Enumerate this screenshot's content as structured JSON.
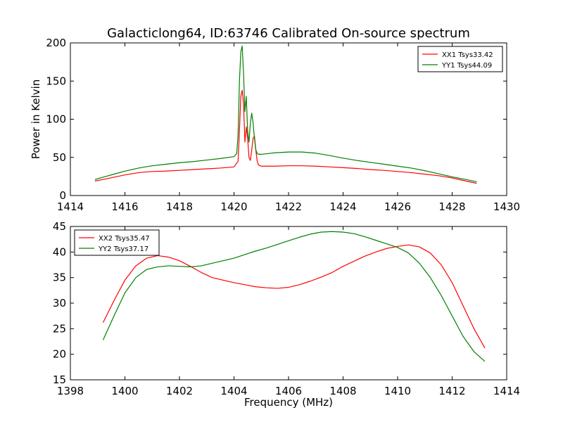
{
  "title": "Galacticlong64, ID:63746 Calibrated On-source spectrum",
  "chart_data": [
    {
      "type": "line",
      "ylabel": "Power in Kelvin",
      "xlabel": "",
      "xlim": [
        1414,
        1430
      ],
      "ylim": [
        0,
        200
      ],
      "xticks": [
        "1414",
        "1416",
        "1418",
        "1420",
        "1422",
        "1424",
        "1426",
        "1428",
        "1430"
      ],
      "yticks": [
        "0",
        "50",
        "100",
        "150",
        "200"
      ],
      "legend_position": "top-right",
      "series": [
        {
          "name": "XX1 Tsys33.42",
          "color": "#ff0000",
          "x": [
            1414.9,
            1415.2,
            1415.6,
            1416.0,
            1416.5,
            1417.0,
            1417.5,
            1418.0,
            1418.5,
            1419.0,
            1419.5,
            1420.0,
            1420.15,
            1420.2,
            1420.25,
            1420.3,
            1420.35,
            1420.4,
            1420.45,
            1420.5,
            1420.55,
            1420.6,
            1420.65,
            1420.7,
            1420.75,
            1420.8,
            1420.85,
            1420.9,
            1421.0,
            1421.5,
            1422.0,
            1422.5,
            1423.0,
            1423.5,
            1424.0,
            1424.5,
            1425.0,
            1425.5,
            1426.0,
            1426.5,
            1427.0,
            1427.5,
            1428.0,
            1428.5,
            1428.9
          ],
          "y": [
            19,
            21,
            24,
            27,
            30,
            31.5,
            32,
            33,
            34,
            35,
            36,
            37.5,
            45,
            85,
            130,
            138,
            120,
            70,
            90,
            75,
            50,
            46,
            60,
            75,
            78,
            60,
            45,
            40,
            38.5,
            38.5,
            39,
            39,
            38.5,
            37.5,
            36.5,
            35.5,
            34,
            33,
            31.5,
            30,
            28,
            26,
            23,
            19,
            16
          ]
        },
        {
          "name": "YY1 Tsys44.09",
          "color": "#008000",
          "x": [
            1414.9,
            1415.2,
            1415.6,
            1416.0,
            1416.5,
            1417.0,
            1417.5,
            1418.0,
            1418.5,
            1419.0,
            1419.5,
            1420.0,
            1420.1,
            1420.15,
            1420.2,
            1420.25,
            1420.3,
            1420.35,
            1420.4,
            1420.45,
            1420.5,
            1420.55,
            1420.6,
            1420.65,
            1420.7,
            1420.75,
            1420.8,
            1420.85,
            1420.9,
            1421.0,
            1421.5,
            1422.0,
            1422.5,
            1423.0,
            1423.5,
            1424.0,
            1424.5,
            1425.0,
            1425.5,
            1426.0,
            1426.5,
            1427.0,
            1427.5,
            1428.0,
            1428.5,
            1428.9
          ],
          "y": [
            21,
            24,
            28,
            32,
            36,
            39,
            41,
            43,
            44.5,
            46.5,
            48.5,
            51,
            55,
            80,
            150,
            188,
            196,
            160,
            110,
            130,
            85,
            70,
            95,
            108,
            95,
            75,
            60,
            55,
            54,
            54,
            56,
            57,
            57,
            55.5,
            52.5,
            49,
            46,
            43.5,
            41,
            38.5,
            36,
            32.5,
            28.5,
            24.5,
            21,
            18
          ]
        }
      ]
    },
    {
      "type": "line",
      "ylabel": "",
      "xlabel": "Frequency (MHz)",
      "xlim": [
        1398,
        1414
      ],
      "ylim": [
        15,
        45
      ],
      "xticks": [
        "1398",
        "1400",
        "1402",
        "1404",
        "1406",
        "1408",
        "1410",
        "1412",
        "1414"
      ],
      "yticks": [
        "15",
        "20",
        "25",
        "30",
        "35",
        "40",
        "45"
      ],
      "legend_position": "top-left",
      "series": [
        {
          "name": "XX2 Tsys35.47",
          "color": "#ff0000",
          "x": [
            1399.2,
            1399.6,
            1400.0,
            1400.4,
            1400.8,
            1401.2,
            1401.6,
            1402.0,
            1402.4,
            1402.8,
            1403.2,
            1403.6,
            1404.0,
            1404.4,
            1404.8,
            1405.2,
            1405.6,
            1406.0,
            1406.4,
            1406.8,
            1407.2,
            1407.6,
            1408.0,
            1408.4,
            1408.8,
            1409.2,
            1409.6,
            1410.0,
            1410.4,
            1410.8,
            1411.2,
            1411.6,
            1412.0,
            1412.4,
            1412.8,
            1413.2
          ],
          "y": [
            26.2,
            30.5,
            34.5,
            37.3,
            38.8,
            39.3,
            39.0,
            38.3,
            37.2,
            36.0,
            35.0,
            34.5,
            34.0,
            33.6,
            33.2,
            33.0,
            32.9,
            33.1,
            33.6,
            34.3,
            35.1,
            36.0,
            37.2,
            38.2,
            39.2,
            40.0,
            40.7,
            41.1,
            41.4,
            41.0,
            39.8,
            37.5,
            34.0,
            29.5,
            25.0,
            21.2
          ]
        },
        {
          "name": "YY2 Tsys37.17",
          "color": "#008000",
          "x": [
            1399.2,
            1399.6,
            1400.0,
            1400.4,
            1400.8,
            1401.2,
            1401.6,
            1402.0,
            1402.4,
            1402.8,
            1403.2,
            1403.6,
            1404.0,
            1404.4,
            1404.8,
            1405.2,
            1405.6,
            1406.0,
            1406.4,
            1406.8,
            1407.2,
            1407.6,
            1408.0,
            1408.4,
            1408.8,
            1409.2,
            1409.6,
            1410.0,
            1410.4,
            1410.8,
            1411.2,
            1411.6,
            1412.0,
            1412.4,
            1412.8,
            1413.2
          ],
          "y": [
            22.8,
            27.5,
            32.0,
            35.0,
            36.6,
            37.1,
            37.3,
            37.2,
            37.1,
            37.3,
            37.8,
            38.3,
            38.8,
            39.5,
            40.2,
            40.8,
            41.5,
            42.2,
            42.9,
            43.5,
            43.9,
            44.0,
            43.9,
            43.6,
            43.0,
            42.3,
            41.6,
            40.9,
            39.8,
            37.8,
            35.0,
            31.5,
            27.5,
            23.5,
            20.5,
            18.6
          ]
        }
      ]
    }
  ]
}
